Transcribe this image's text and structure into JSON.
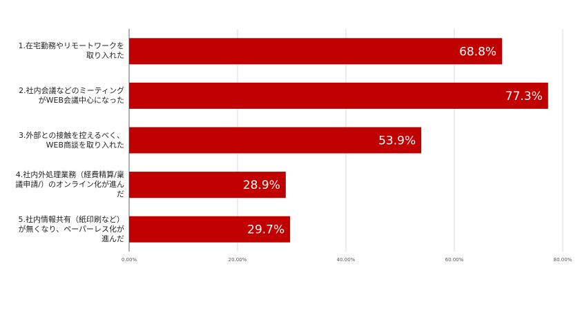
{
  "chart_data": {
    "type": "bar",
    "orientation": "horizontal",
    "categories": [
      "1.在宅勤務やリモートワークを取り入れた",
      "2.社内会議などのミーティングがWEB会議中心になった",
      "3.外部との接触を控えるべく、WEB商談を取り入れた",
      "4.社内外処理業務（経費精算/稟議申請/）のオンライン化が進んだ",
      "5.社内情報共有（紙印刷など）が無くなり、ペーパーレス化が進んだ"
    ],
    "values": [
      68.8,
      77.3,
      53.9,
      28.9,
      29.7
    ],
    "value_labels": [
      "68.8%",
      "77.3%",
      "53.9%",
      "28.9%",
      "29.7%"
    ],
    "color": "#c00000",
    "xlim": [
      0,
      80
    ],
    "xticks": [
      {
        "value": 0,
        "label": "0.00%"
      },
      {
        "value": 20,
        "label": "20.00%"
      },
      {
        "value": 40,
        "label": "40.00%"
      },
      {
        "value": 60,
        "label": "60.00%"
      },
      {
        "value": 80,
        "label": "80.00%"
      }
    ],
    "grid": true
  }
}
